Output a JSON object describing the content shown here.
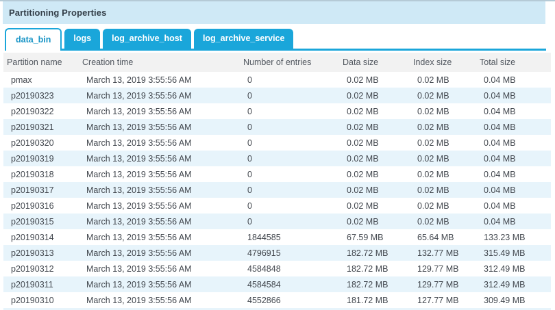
{
  "panel": {
    "title": "Partitioning Properties"
  },
  "tabs": [
    {
      "label": "data_bin",
      "active": true
    },
    {
      "label": "logs",
      "active": false
    },
    {
      "label": "log_archive_host",
      "active": false
    },
    {
      "label": "log_archive_service",
      "active": false
    }
  ],
  "table": {
    "columns": [
      "Partition name",
      "Creation time",
      "Number of entries",
      "Data size",
      "Index size",
      "Total size"
    ],
    "rows": [
      [
        "pmax",
        "March 13, 2019 3:55:56 AM",
        "0",
        "0.02 MB",
        "0.02 MB",
        "0.04 MB"
      ],
      [
        "p20190323",
        "March 13, 2019 3:55:56 AM",
        "0",
        "0.02 MB",
        "0.02 MB",
        "0.04 MB"
      ],
      [
        "p20190322",
        "March 13, 2019 3:55:56 AM",
        "0",
        "0.02 MB",
        "0.02 MB",
        "0.04 MB"
      ],
      [
        "p20190321",
        "March 13, 2019 3:55:56 AM",
        "0",
        "0.02 MB",
        "0.02 MB",
        "0.04 MB"
      ],
      [
        "p20190320",
        "March 13, 2019 3:55:56 AM",
        "0",
        "0.02 MB",
        "0.02 MB",
        "0.04 MB"
      ],
      [
        "p20190319",
        "March 13, 2019 3:55:56 AM",
        "0",
        "0.02 MB",
        "0.02 MB",
        "0.04 MB"
      ],
      [
        "p20190318",
        "March 13, 2019 3:55:56 AM",
        "0",
        "0.02 MB",
        "0.02 MB",
        "0.04 MB"
      ],
      [
        "p20190317",
        "March 13, 2019 3:55:56 AM",
        "0",
        "0.02 MB",
        "0.02 MB",
        "0.04 MB"
      ],
      [
        "p20190316",
        "March 13, 2019 3:55:56 AM",
        "0",
        "0.02 MB",
        "0.02 MB",
        "0.04 MB"
      ],
      [
        "p20190315",
        "March 13, 2019 3:55:56 AM",
        "0",
        "0.02 MB",
        "0.02 MB",
        "0.04 MB"
      ],
      [
        "p20190314",
        "March 13, 2019 3:55:56 AM",
        "1844585",
        "67.59 MB",
        "65.64 MB",
        "133.23 MB"
      ],
      [
        "p20190313",
        "March 13, 2019 3:55:56 AM",
        "4796915",
        "182.72 MB",
        "132.77 MB",
        "315.49 MB"
      ],
      [
        "p20190312",
        "March 13, 2019 3:55:56 AM",
        "4584848",
        "182.72 MB",
        "129.77 MB",
        "312.49 MB"
      ],
      [
        "p20190311",
        "March 13, 2019 3:55:56 AM",
        "4584584",
        "182.72 MB",
        "129.77 MB",
        "312.49 MB"
      ],
      [
        "p20190310",
        "March 13, 2019 3:55:56 AM",
        "4552866",
        "181.72 MB",
        "127.77 MB",
        "309.49 MB"
      ]
    ]
  },
  "colors": {
    "accent_blue": "#1aa6da",
    "panel_header_bg": "#cfe9f6",
    "table_header_bg": "#f2f2f2",
    "row_stripe": "#e7f4fb"
  }
}
